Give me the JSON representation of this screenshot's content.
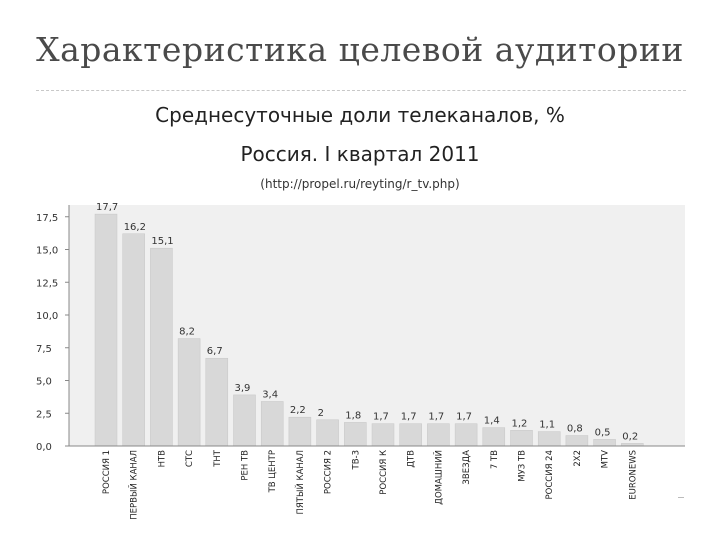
{
  "slide": {
    "title": "Характеристика целевой аудитории"
  },
  "chart_data": {
    "type": "bar",
    "title": "Среднесуточные доли телеканалов, %",
    "subtitle": "Россия. I квартал 2011",
    "source": "(http://propel.ru/reyting/r_tv.php)",
    "xlabel": "",
    "ylabel": "",
    "ylim": [
      0,
      17.5
    ],
    "yticks": [
      "0,0",
      "2,5",
      "5,0",
      "7,5",
      "10,0",
      "12,5",
      "15,0",
      "17,5"
    ],
    "categories": [
      "РОССИЯ 1",
      "ПЕРВЫЙ КАНАЛ",
      "НТВ",
      "СТС",
      "ТНТ",
      "РЕН ТВ",
      "ТВ ЦЕНТР",
      "ПЯТЫЙ КАНАЛ",
      "РОССИЯ 2",
      "ТВ-3",
      "РОССИЯ К",
      "ДТВ",
      "ДОМАШНИЙ",
      "ЗВЕЗДА",
      "7 ТВ",
      "МУЗ ТВ",
      "РОССИЯ 24",
      "2Х2",
      "MTV",
      "EURONEWS"
    ],
    "values": [
      17.7,
      16.2,
      15.1,
      8.2,
      6.7,
      3.9,
      3.4,
      2.2,
      2,
      1.8,
      1.7,
      1.7,
      1.7,
      1.7,
      1.4,
      1.2,
      1.1,
      0.8,
      0.5,
      0.2
    ],
    "value_labels": [
      "17,7",
      "16,2",
      "15,1",
      "8,2",
      "6,7",
      "3,9",
      "3,4",
      "2,2",
      "2",
      "1,8",
      "1,7",
      "1,7",
      "1,7",
      "1,7",
      "1,4",
      "1,2",
      "1,1",
      "0,8",
      "0,5",
      "0,2"
    ],
    "grid": false,
    "legend": "none",
    "colors": {
      "bar": "#d8d8d8",
      "plot_bg": "#f0f0f0",
      "axis": "#888888"
    }
  }
}
